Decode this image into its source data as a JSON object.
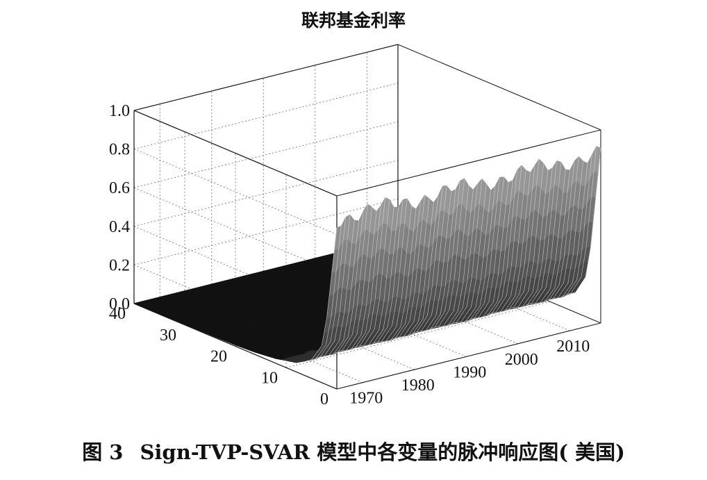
{
  "chart_data": {
    "type": "surface",
    "title": "联邦基金利率",
    "xlabel": "",
    "ylabel": "",
    "zlabel": "",
    "x_axis": {
      "ticks": [
        1970,
        1980,
        1990,
        2000,
        2010
      ],
      "range": [
        1965,
        2016
      ]
    },
    "y_axis": {
      "ticks": [
        0,
        10,
        20,
        30,
        40
      ],
      "range": [
        0,
        40
      ]
    },
    "z_axis": {
      "ticks": [
        "0.0",
        "0.2",
        "0.4",
        "0.6",
        "0.8",
        "1.0"
      ],
      "range": [
        0,
        1
      ]
    },
    "grid": true,
    "surface_profile": {
      "horizon": [
        0,
        1,
        2,
        3,
        5,
        8,
        12,
        16,
        20,
        25,
        30,
        35,
        40
      ],
      "response": [
        0.88,
        0.62,
        0.36,
        0.2,
        0.1,
        0.05,
        0.025,
        0.012,
        0.006,
        0.003,
        0.001,
        0.0,
        0.0
      ]
    }
  },
  "caption": {
    "figure_no": "图 3",
    "text": "Sign-TVP-SVAR 模型中各变量的脉冲响应图( 美国)"
  }
}
